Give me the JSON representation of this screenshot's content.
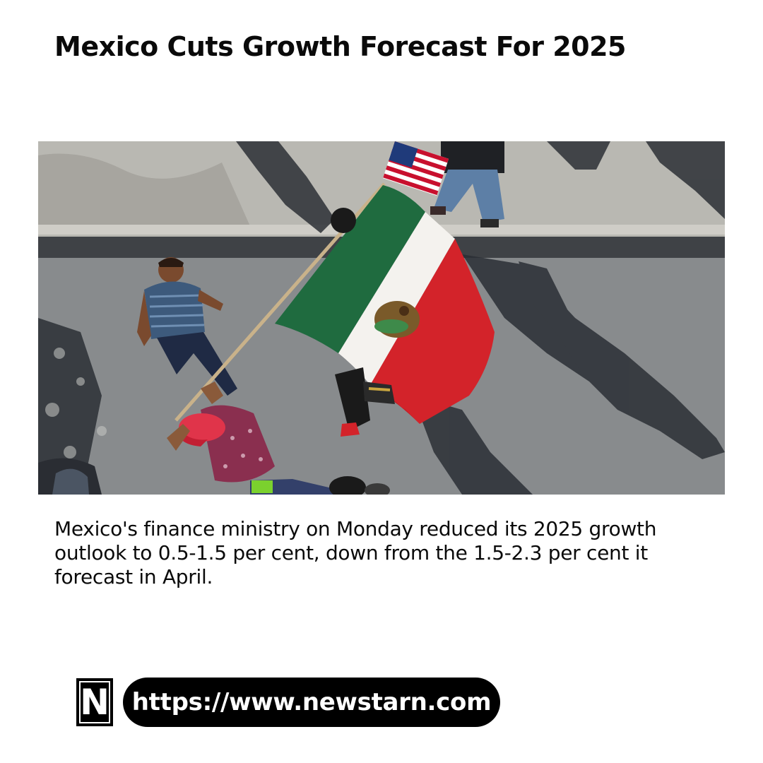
{
  "article": {
    "headline": "Mexico Cuts Growth Forecast For 2025",
    "body": "Mexico's finance ministry on Monday reduced its 2025 growth outlook to 0.5-1.5 per cent, down from the 1.5-2.3 per cent it forecast in April."
  },
  "footer": {
    "logo_letter": "N",
    "url": "https://www.newstarn.com"
  },
  "photo": {
    "subject_icons": [
      "mexican-flag",
      "us-flag",
      "crowd",
      "street"
    ]
  },
  "colors": {
    "flag_green": "#1f6b3f",
    "flag_white": "#f4f2ee",
    "flag_red": "#d3232a",
    "pill_bg": "#000000",
    "text": "#0a0a0a"
  }
}
